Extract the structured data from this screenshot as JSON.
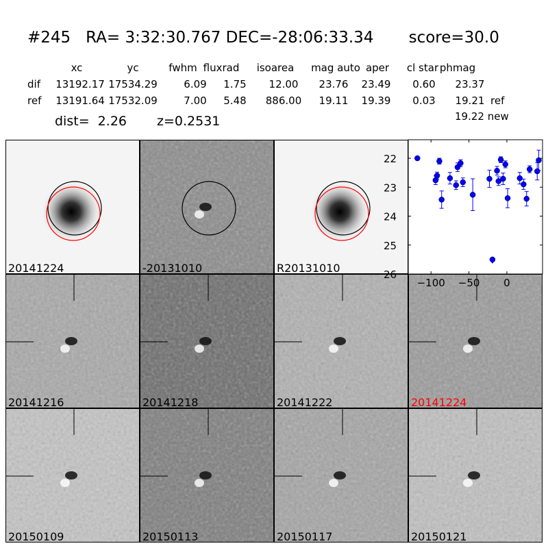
{
  "header": {
    "title": "#245   RA= 3:32:30.767 DEC=-28:06:33.34       score=30.0",
    "columns": [
      "xc",
      "yc",
      "fwhm",
      "fluxrad",
      "isoarea",
      "mag auto",
      "aper",
      "cl star",
      "phmag"
    ],
    "rows": [
      {
        "label": "dif",
        "values": [
          "13192.17",
          "17534.29",
          "6.09",
          "1.75",
          "12.00",
          "23.76",
          "23.49",
          "0.60",
          "23.37"
        ],
        "suffix": ""
      },
      {
        "label": "ref",
        "values": [
          "13191.64",
          "17532.09",
          "7.00",
          "5.48",
          "886.00",
          "19.11",
          "19.39",
          "0.03",
          "19.21"
        ],
        "suffix": "ref"
      }
    ],
    "extra_phmag": "19.22 new",
    "dist": "dist=  2.26",
    "z": "z=0.2531"
  },
  "panels": [
    {
      "label": "20141224",
      "bg": "#f4f4f4",
      "circles": true,
      "crosshair": false,
      "label_color": "#000000"
    },
    {
      "label": "-20131010",
      "bg": "#8a8a8a",
      "circles": true,
      "black_only": true,
      "crosshair": false,
      "label_color": "#000000"
    },
    {
      "label": "R20131010",
      "bg": "#f4f4f4",
      "circles": true,
      "crosshair": false,
      "label_color": "#000000"
    },
    {
      "label": "20141216",
      "bg": "#a8a8a8",
      "crosshair": true,
      "label_color": "#000000"
    },
    {
      "label": "20141218",
      "bg": "#6a6a6a",
      "crosshair": true,
      "label_color": "#000000"
    },
    {
      "label": "20141222",
      "bg": "#b0b0b0",
      "crosshair": true,
      "label_color": "#000000"
    },
    {
      "label": "20141224",
      "bg": "#9a9a9a",
      "crosshair": true,
      "label_color": "#ff0000"
    },
    {
      "label": "20150109",
      "bg": "#c4c4c4",
      "crosshair": true,
      "label_color": "#000000"
    },
    {
      "label": "20150113",
      "bg": "#7c7c7c",
      "crosshair": true,
      "label_color": "#000000"
    },
    {
      "label": "20150117",
      "bg": "#a4a4a4",
      "crosshair": true,
      "label_color": "#000000"
    },
    {
      "label": "20150121",
      "bg": "#c0c0c0",
      "crosshair": true,
      "label_color": "#000000"
    }
  ],
  "colors": {
    "point": "#0000ff",
    "ref_circle": "#ff0000",
    "det_circle": "#000000"
  },
  "chart_data": {
    "type": "scatter",
    "xlim": [
      -130,
      47
    ],
    "ylim": [
      26,
      21.36
    ],
    "y_inverted": true,
    "xticks": [
      -100,
      -50,
      0
    ],
    "yticks": [
      22,
      23,
      24,
      25,
      26
    ],
    "x": [
      -118,
      -94,
      -92,
      -89,
      -86,
      -75,
      -67,
      -65,
      -61,
      -58,
      -45,
      -23,
      -13,
      -11,
      -8,
      -5,
      -2,
      1,
      17,
      22,
      26,
      30,
      40,
      42
    ],
    "y": [
      22.0,
      22.76,
      22.6,
      22.1,
      23.43,
      22.69,
      22.93,
      22.31,
      22.17,
      22.83,
      23.26,
      22.71,
      22.43,
      22.79,
      22.05,
      22.71,
      22.21,
      23.38,
      22.69,
      22.9,
      23.4,
      22.38,
      22.45,
      22.07
    ],
    "yerr": [
      0.05,
      0.15,
      0.12,
      0.1,
      0.3,
      0.2,
      0.15,
      0.15,
      0.12,
      0.15,
      0.55,
      0.3,
      0.15,
      0.15,
      0.1,
      0.2,
      0.12,
      0.33,
      0.2,
      0.18,
      0.25,
      0.12,
      0.3,
      0.35
    ],
    "upper_limits": [
      {
        "x": -19,
        "y": 25.5
      }
    ]
  }
}
